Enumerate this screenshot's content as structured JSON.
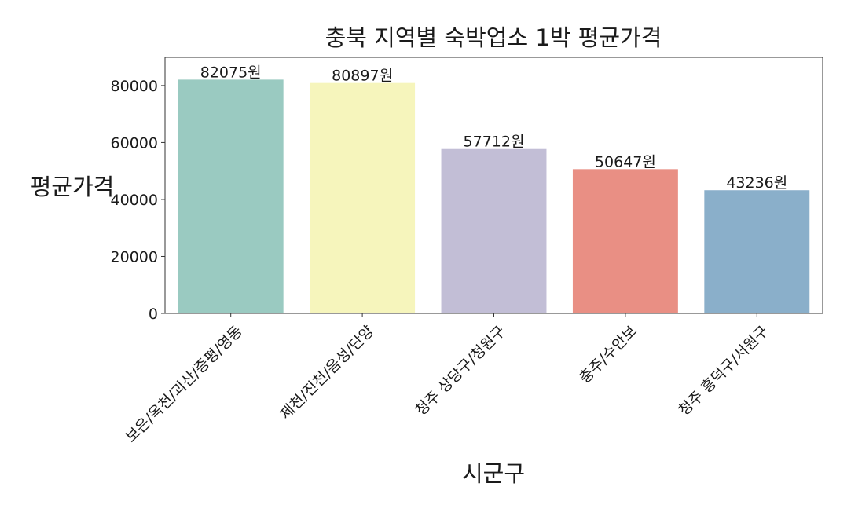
{
  "chart_data": {
    "type": "bar",
    "title": "충북 지역별 숙박업소 1박 평균가격",
    "xlabel": "시군구",
    "ylabel": "평균가격",
    "categories": [
      "보은/옥천/괴산/증평/영동",
      "제천/진천/음성/단양",
      "청주 상당구/청원구",
      "충주/수안보",
      "청주 흥덕구/서원구"
    ],
    "values": [
      82075,
      80897,
      57712,
      50647,
      43236
    ],
    "value_labels": [
      "82075원",
      "80897원",
      "57712원",
      "50647원",
      "43236원"
    ],
    "colors": [
      "#9acac1",
      "#f6f5bc",
      "#c2bed6",
      "#e98f84",
      "#8aafca"
    ],
    "ylim": [
      0,
      89900
    ],
    "yticks": [
      0,
      20000,
      40000,
      60000,
      80000
    ],
    "ytick_labels": [
      "0",
      "20000",
      "40000",
      "60000",
      "80000"
    ],
    "grid": false,
    "legend": "none"
  }
}
